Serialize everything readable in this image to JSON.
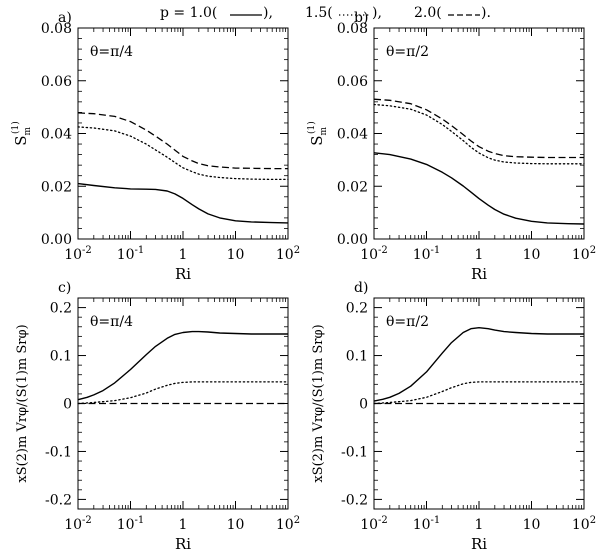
{
  "header": {
    "legend_entries": [
      {
        "label": "p = 1.0(",
        "style": "solid",
        "suffix": "),"
      },
      {
        "label": "1.5(",
        "style": "dotted",
        "suffix": "),"
      },
      {
        "label": "2.0(",
        "style": "dashed",
        "suffix": ")."
      }
    ]
  },
  "chart_data": [
    {
      "type": "line",
      "panel_label": "a)",
      "annotation": "θ=π/4",
      "xlabel": "Ri",
      "ylabel_main": "S",
      "ylabel_sub": "m",
      "ylabel_sup": "(1)",
      "xscale": "log",
      "xlim": [
        0.01,
        100
      ],
      "ylim": [
        0,
        0.08
      ],
      "xticks": [
        {
          "value": 0.01,
          "base": "10",
          "exp": "-2"
        },
        {
          "value": 0.1,
          "base": "10",
          "exp": "-1"
        },
        {
          "value": 1,
          "base": "1",
          "exp": ""
        },
        {
          "value": 10,
          "base": "10",
          "exp": ""
        },
        {
          "value": 100,
          "base": "10",
          "exp": "2"
        }
      ],
      "yticks": [
        {
          "value": 0,
          "label": "0.00"
        },
        {
          "value": 0.02,
          "label": "0.02"
        },
        {
          "value": 0.04,
          "label": "0.04"
        },
        {
          "value": 0.06,
          "label": "0.06"
        },
        {
          "value": 0.08,
          "label": "0.08"
        }
      ],
      "series": [
        {
          "name": "p=1.0",
          "style": "solid",
          "x": [
            0.01,
            0.02,
            0.05,
            0.1,
            0.2,
            0.3,
            0.5,
            0.7,
            1,
            1.5,
            2,
            3,
            5,
            10,
            20,
            50,
            100
          ],
          "y": [
            0.021,
            0.0203,
            0.0194,
            0.019,
            0.0189,
            0.0188,
            0.0182,
            0.0171,
            0.0154,
            0.013,
            0.0114,
            0.0095,
            0.008,
            0.0069,
            0.0065,
            0.0062,
            0.0061
          ]
        },
        {
          "name": "p=1.5",
          "style": "dotted",
          "x": [
            0.01,
            0.02,
            0.05,
            0.1,
            0.2,
            0.3,
            0.5,
            0.7,
            1,
            1.5,
            2,
            3,
            5,
            10,
            20,
            50,
            100
          ],
          "y": [
            0.0425,
            0.0421,
            0.041,
            0.039,
            0.036,
            0.0338,
            0.031,
            0.029,
            0.027,
            0.0255,
            0.0246,
            0.0238,
            0.0233,
            0.0229,
            0.0227,
            0.0226,
            0.0226
          ]
        },
        {
          "name": "p=2.0",
          "style": "dashed",
          "x": [
            0.01,
            0.02,
            0.05,
            0.1,
            0.2,
            0.3,
            0.5,
            0.7,
            1,
            1.5,
            2,
            3,
            5,
            10,
            20,
            50,
            100
          ],
          "y": [
            0.0478,
            0.0475,
            0.0465,
            0.0445,
            0.0413,
            0.039,
            0.036,
            0.0337,
            0.0313,
            0.0296,
            0.0286,
            0.0278,
            0.0273,
            0.0269,
            0.0268,
            0.0267,
            0.0267
          ]
        }
      ]
    },
    {
      "type": "line",
      "panel_label": "b)",
      "annotation": "θ=π/2",
      "xlabel": "Ri",
      "ylabel_main": "S",
      "ylabel_sub": "m",
      "ylabel_sup": "(1)",
      "xscale": "log",
      "xlim": [
        0.01,
        100
      ],
      "ylim": [
        0,
        0.08
      ],
      "xticks": [
        {
          "value": 0.01,
          "base": "10",
          "exp": "-2"
        },
        {
          "value": 0.1,
          "base": "10",
          "exp": "-1"
        },
        {
          "value": 1,
          "base": "1",
          "exp": ""
        },
        {
          "value": 10,
          "base": "10",
          "exp": ""
        },
        {
          "value": 100,
          "base": "10",
          "exp": "2"
        }
      ],
      "yticks": [
        {
          "value": 0,
          "label": "0.00"
        },
        {
          "value": 0.02,
          "label": "0.02"
        },
        {
          "value": 0.04,
          "label": "0.04"
        },
        {
          "value": 0.06,
          "label": "0.06"
        },
        {
          "value": 0.08,
          "label": "0.08"
        }
      ],
      "series": [
        {
          "name": "p=1.0",
          "style": "solid",
          "x": [
            0.01,
            0.02,
            0.05,
            0.1,
            0.2,
            0.3,
            0.5,
            0.7,
            1,
            1.5,
            2,
            3,
            5,
            10,
            20,
            50,
            100
          ],
          "y": [
            0.0327,
            0.032,
            0.0303,
            0.0283,
            0.0253,
            0.0232,
            0.0201,
            0.0178,
            0.0153,
            0.0128,
            0.0112,
            0.0094,
            0.0079,
            0.0067,
            0.0061,
            0.0058,
            0.0057
          ]
        },
        {
          "name": "p=1.5",
          "style": "dotted",
          "x": [
            0.01,
            0.02,
            0.05,
            0.1,
            0.2,
            0.3,
            0.5,
            0.7,
            1,
            1.5,
            2,
            3,
            5,
            10,
            20,
            50,
            100
          ],
          "y": [
            0.051,
            0.0505,
            0.0492,
            0.047,
            0.0434,
            0.0408,
            0.0373,
            0.0348,
            0.0326,
            0.0308,
            0.0299,
            0.0292,
            0.0288,
            0.0286,
            0.0285,
            0.0285,
            0.0285
          ]
        },
        {
          "name": "p=2.0",
          "style": "dashed",
          "x": [
            0.01,
            0.02,
            0.05,
            0.1,
            0.2,
            0.3,
            0.5,
            0.7,
            1,
            1.5,
            2,
            3,
            5,
            10,
            20,
            50,
            100
          ],
          "y": [
            0.053,
            0.0526,
            0.0513,
            0.049,
            0.0455,
            0.043,
            0.0396,
            0.0372,
            0.035,
            0.0333,
            0.0324,
            0.0316,
            0.0312,
            0.031,
            0.0309,
            0.0309,
            0.0309
          ]
        }
      ]
    },
    {
      "type": "line",
      "panel_label": "c)",
      "annotation": "θ=π/4",
      "xlabel": "Ri",
      "ylabel": "xS(2)m Vrφ/(S(1)m Srφ)",
      "xscale": "log",
      "xlim": [
        0.01,
        100
      ],
      "ylim": [
        -0.22,
        0.22
      ],
      "xticks": [
        {
          "value": 0.01,
          "base": "10",
          "exp": "-2"
        },
        {
          "value": 0.1,
          "base": "10",
          "exp": "-1"
        },
        {
          "value": 1,
          "base": "1",
          "exp": ""
        },
        {
          "value": 10,
          "base": "10",
          "exp": ""
        },
        {
          "value": 100,
          "base": "10",
          "exp": "2"
        }
      ],
      "yticks": [
        {
          "value": -0.2,
          "label": "-0.2"
        },
        {
          "value": -0.1,
          "label": "-0.1"
        },
        {
          "value": 0,
          "label": "0"
        },
        {
          "value": 0.1,
          "label": "0.1"
        },
        {
          "value": 0.2,
          "label": "0.2"
        }
      ],
      "series": [
        {
          "name": "p=1.0",
          "style": "solid",
          "x": [
            0.01,
            0.015,
            0.02,
            0.03,
            0.05,
            0.1,
            0.2,
            0.3,
            0.5,
            0.7,
            1,
            1.5,
            2,
            3,
            5,
            10,
            20,
            50,
            100
          ],
          "y": [
            0.008,
            0.013,
            0.018,
            0.027,
            0.043,
            0.071,
            0.102,
            0.119,
            0.136,
            0.144,
            0.148,
            0.15,
            0.15,
            0.149,
            0.147,
            0.146,
            0.145,
            0.145,
            0.145
          ]
        },
        {
          "name": "p=1.5",
          "style": "dotted",
          "x": [
            0.01,
            0.02,
            0.05,
            0.1,
            0.2,
            0.3,
            0.5,
            0.7,
            1,
            1.5,
            2,
            3,
            5,
            10,
            20,
            50,
            100
          ],
          "y": [
            0.0,
            0.002,
            0.006,
            0.012,
            0.022,
            0.03,
            0.038,
            0.042,
            0.044,
            0.045,
            0.045,
            0.045,
            0.045,
            0.045,
            0.045,
            0.045,
            0.045
          ]
        },
        {
          "name": "p=2.0",
          "style": "dashed",
          "x": [
            0.01,
            100
          ],
          "y": [
            0.0,
            0.0
          ]
        }
      ]
    },
    {
      "type": "line",
      "panel_label": "d)",
      "annotation": "θ=π/2",
      "xlabel": "Ri",
      "ylabel": "xS(2)m Vrφ/(S(1)m Srφ)",
      "xscale": "log",
      "xlim": [
        0.01,
        100
      ],
      "ylim": [
        -0.22,
        0.22
      ],
      "xticks": [
        {
          "value": 0.01,
          "base": "10",
          "exp": "-2"
        },
        {
          "value": 0.1,
          "base": "10",
          "exp": "-1"
        },
        {
          "value": 1,
          "base": "1",
          "exp": ""
        },
        {
          "value": 10,
          "base": "10",
          "exp": ""
        },
        {
          "value": 100,
          "base": "10",
          "exp": "2"
        }
      ],
      "yticks": [
        {
          "value": -0.2,
          "label": "-0.2"
        },
        {
          "value": -0.1,
          "label": "-0.1"
        },
        {
          "value": 0,
          "label": "0"
        },
        {
          "value": 0.1,
          "label": "0.1"
        },
        {
          "value": 0.2,
          "label": "0.2"
        }
      ],
      "series": [
        {
          "name": "p=1.0",
          "style": "solid",
          "x": [
            0.01,
            0.015,
            0.02,
            0.03,
            0.05,
            0.1,
            0.2,
            0.3,
            0.5,
            0.7,
            1,
            1.5,
            2,
            3,
            5,
            10,
            20,
            50,
            100
          ],
          "y": [
            0.005,
            0.009,
            0.013,
            0.021,
            0.036,
            0.066,
            0.105,
            0.127,
            0.148,
            0.156,
            0.158,
            0.156,
            0.153,
            0.15,
            0.148,
            0.146,
            0.145,
            0.145,
            0.145
          ]
        },
        {
          "name": "p=1.5",
          "style": "dotted",
          "x": [
            0.01,
            0.02,
            0.05,
            0.1,
            0.2,
            0.3,
            0.5,
            0.7,
            1,
            1.5,
            2,
            3,
            5,
            10,
            20,
            50,
            100
          ],
          "y": [
            0.0,
            0.002,
            0.006,
            0.013,
            0.025,
            0.033,
            0.041,
            0.044,
            0.045,
            0.045,
            0.045,
            0.045,
            0.045,
            0.045,
            0.045,
            0.045,
            0.045
          ]
        },
        {
          "name": "p=2.0",
          "style": "dashed",
          "x": [
            0.01,
            100
          ],
          "y": [
            0.0,
            0.0
          ]
        }
      ]
    }
  ]
}
